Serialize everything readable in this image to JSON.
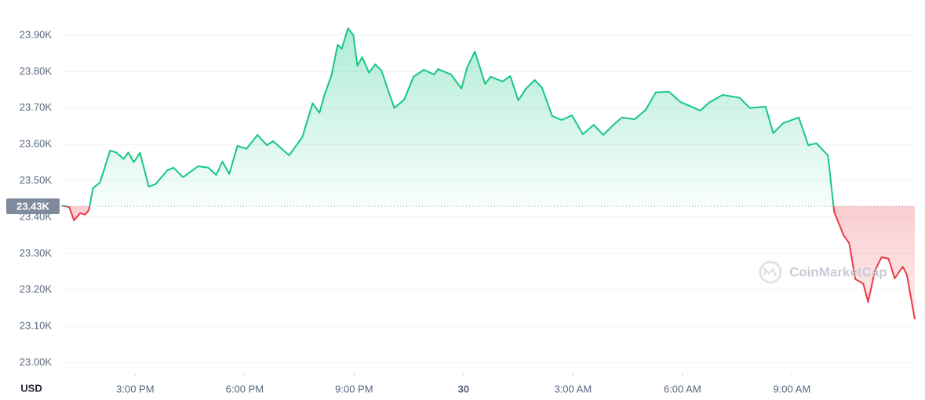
{
  "chart_data": {
    "type": "line",
    "x": [
      12.98,
      13.19,
      13.32,
      13.49,
      13.62,
      13.73,
      13.84,
      14.03,
      14.31,
      14.48,
      14.68,
      14.81,
      14.96,
      15.13,
      15.37,
      15.56,
      15.88,
      16.05,
      16.31,
      16.72,
      17.0,
      17.22,
      17.39,
      17.58,
      17.8,
      18.05,
      18.35,
      18.61,
      18.78,
      19.22,
      19.58,
      19.86,
      20.05,
      20.18,
      20.38,
      20.55,
      20.66,
      20.83,
      20.98,
      21.09,
      21.22,
      21.41,
      21.58,
      21.75,
      22.1,
      22.37,
      22.63,
      22.91,
      23.19,
      23.3,
      23.66,
      23.94,
      24.1,
      24.31,
      24.59,
      24.74,
      25.07,
      25.28,
      25.5,
      25.71,
      25.95,
      26.15,
      26.43,
      26.69,
      26.97,
      27.27,
      27.57,
      27.83,
      28.09,
      28.34,
      28.69,
      28.99,
      29.27,
      29.63,
      29.94,
      30.49,
      30.73,
      31.1,
      31.57,
      31.85,
      32.28,
      32.49,
      32.77,
      33.19,
      33.45,
      33.67,
      33.99,
      34.16,
      34.42,
      34.57,
      34.74,
      34.96,
      35.09,
      35.28,
      35.46,
      35.65,
      35.82,
      36.04,
      36.15,
      36.37
    ],
    "values": [
      23432,
      23428,
      23391,
      23411,
      23407,
      23419,
      23480,
      23495,
      23583,
      23578,
      23560,
      23578,
      23551,
      23577,
      23484,
      23491,
      23529,
      23536,
      23510,
      23540,
      23536,
      23516,
      23553,
      23519,
      23596,
      23588,
      23626,
      23598,
      23609,
      23570,
      23620,
      23713,
      23687,
      23734,
      23790,
      23874,
      23863,
      23919,
      23900,
      23816,
      23840,
      23797,
      23820,
      23803,
      23700,
      23723,
      23786,
      23805,
      23792,
      23807,
      23792,
      23753,
      23812,
      23855,
      23766,
      23786,
      23773,
      23788,
      23721,
      23753,
      23777,
      23756,
      23678,
      23667,
      23680,
      23628,
      23654,
      23626,
      23652,
      23674,
      23669,
      23695,
      23743,
      23745,
      23717,
      23693,
      23715,
      23736,
      23728,
      23700,
      23704,
      23631,
      23659,
      23674,
      23598,
      23603,
      23570,
      23415,
      23350,
      23329,
      23230,
      23217,
      23167,
      23254,
      23290,
      23286,
      23232,
      23264,
      23243,
      23120
    ],
    "reference": {
      "value": 23430,
      "label": "23.43K"
    },
    "up_color": "#16c784",
    "down_color": "#ea3943",
    "xlim": [
      12.97,
      36.37
    ],
    "xticks": [
      {
        "value": 15,
        "label": "3:00 PM"
      },
      {
        "value": 18,
        "label": "6:00 PM"
      },
      {
        "value": 21,
        "label": "9:00 PM"
      },
      {
        "value": 24,
        "label": "30"
      },
      {
        "value": 27,
        "label": "3:00 AM"
      },
      {
        "value": 30,
        "label": "6:00 AM"
      },
      {
        "value": 33,
        "label": "9:00 AM"
      }
    ],
    "ylim": [
      22970,
      23930
    ],
    "yticks": [
      {
        "value": 23000,
        "label": "23.00K"
      },
      {
        "value": 23100,
        "label": "23.10K"
      },
      {
        "value": 23200,
        "label": "23.20K"
      },
      {
        "value": 23300,
        "label": "23.30K"
      },
      {
        "value": 23400,
        "label": "23.40K"
      },
      {
        "value": 23500,
        "label": "23.50K"
      },
      {
        "value": 23600,
        "label": "23.60K"
      },
      {
        "value": 23700,
        "label": "23.70K"
      },
      {
        "value": 23800,
        "label": "23.80K"
      },
      {
        "value": 23900,
        "label": "23.90K"
      }
    ],
    "grid": true,
    "currency": "USD",
    "watermark": "CoinMarketCap"
  }
}
